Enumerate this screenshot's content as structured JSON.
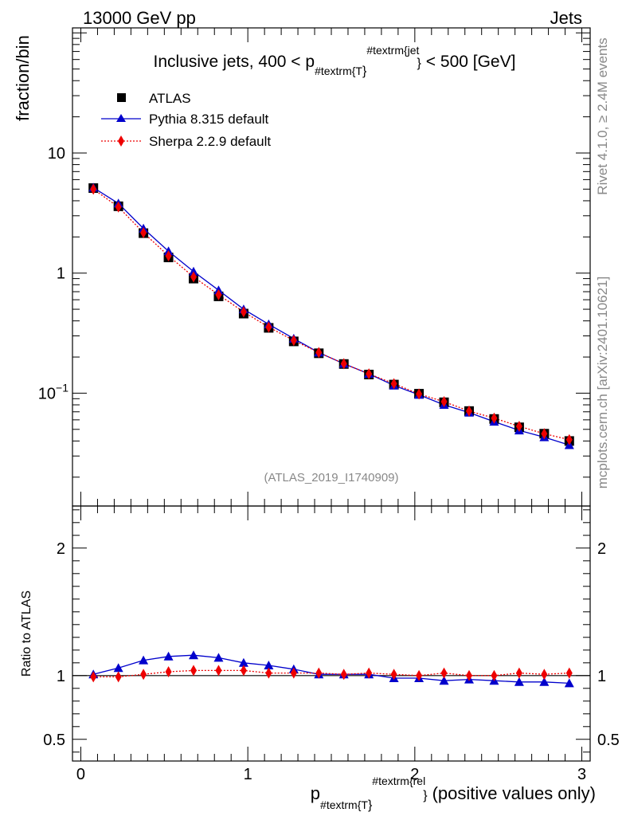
{
  "header": {
    "left": "13000 GeV pp",
    "right": "Jets",
    "side_events": "Rivet 4.1.0, ≥ 2.4M events",
    "side_ref": "mcplots.cern.ch [arXiv:2401.10621]",
    "analysis_tag": "(ATLAS_2019_I1740909)"
  },
  "colors": {
    "atlas": "#000000",
    "pythia": "#0000cc",
    "sherpa": "#ee0000"
  },
  "chart_data": [
    {
      "type": "line",
      "role": "main",
      "title_main": "Inclusive jets, 400 < p",
      "title_sub": "#textrm{T",
      "title_sup": "#textrm{jet",
      "title_tail": "< 500 [GeV]",
      "ylabel": "fraction/bin",
      "yscale": "log",
      "ylim": [
        0.0115,
        110
      ],
      "xlim": [
        -0.05,
        3.05
      ],
      "y_ticks": [
        {
          "value": 10,
          "label": "10"
        },
        {
          "value": 1,
          "label": "1"
        },
        {
          "value": 0.1,
          "label": "10",
          "sup": "−1"
        }
      ],
      "x": [
        0.075,
        0.225,
        0.375,
        0.525,
        0.675,
        0.825,
        0.975,
        1.125,
        1.275,
        1.425,
        1.575,
        1.725,
        1.875,
        2.025,
        2.175,
        2.325,
        2.475,
        2.625,
        2.775,
        2.925
      ],
      "legend": [
        "ATLAS",
        "Pythia 8.315 default",
        "Sherpa 2.2.9 default"
      ],
      "series": [
        {
          "name": "ATLAS",
          "values": [
            5.1,
            3.6,
            2.15,
            1.35,
            0.9,
            0.64,
            0.46,
            0.35,
            0.27,
            0.215,
            0.175,
            0.143,
            0.118,
            0.099,
            0.084,
            0.071,
            0.061,
            0.052,
            0.046,
            0.04
          ]
        },
        {
          "name": "Pythia 8.315 default",
          "values": [
            5.15,
            3.8,
            2.35,
            1.52,
            1.03,
            0.72,
            0.5,
            0.375,
            0.285,
            0.218,
            0.176,
            0.145,
            0.116,
            0.097,
            0.08,
            0.069,
            0.058,
            0.049,
            0.043,
            0.037
          ]
        },
        {
          "name": "Sherpa 2.2.9 default",
          "values": [
            5.0,
            3.55,
            2.17,
            1.39,
            0.93,
            0.66,
            0.475,
            0.355,
            0.275,
            0.218,
            0.176,
            0.145,
            0.12,
            0.0985,
            0.085,
            0.071,
            0.062,
            0.053,
            0.046,
            0.041
          ]
        }
      ]
    },
    {
      "type": "line",
      "role": "ratio",
      "ylabel": "Ratio to ATLAS",
      "ylim": [
        0.33,
        2.33
      ],
      "xlim": [
        -0.05,
        3.05
      ],
      "xlabel_main": "p",
      "xlabel_sub": "#textrm{T",
      "xlabel_sup": "#textrm{rel",
      "xlabel_tail": "(positive values only)",
      "y_ticks": [
        {
          "value": 2,
          "label": "2"
        },
        {
          "value": 1,
          "label": "1"
        },
        {
          "value": 0.5,
          "label": "0.5"
        }
      ],
      "x_ticks": [
        {
          "value": 0,
          "label": "0"
        },
        {
          "value": 1,
          "label": "1"
        },
        {
          "value": 2,
          "label": "2"
        },
        {
          "value": 3,
          "label": "3"
        }
      ],
      "x": [
        0.075,
        0.225,
        0.375,
        0.525,
        0.675,
        0.825,
        0.975,
        1.125,
        1.275,
        1.425,
        1.575,
        1.725,
        1.875,
        2.025,
        2.175,
        2.325,
        2.475,
        2.625,
        2.775,
        2.925
      ],
      "series": [
        {
          "name": "Pythia 8.315 default",
          "values": [
            1.01,
            1.06,
            1.12,
            1.15,
            1.16,
            1.14,
            1.1,
            1.08,
            1.05,
            1.01,
            1.01,
            1.01,
            0.98,
            0.98,
            0.96,
            0.97,
            0.96,
            0.95,
            0.95,
            0.94
          ]
        },
        {
          "name": "Sherpa 2.2.9 default",
          "values": [
            0.99,
            0.99,
            1.01,
            1.03,
            1.04,
            1.04,
            1.04,
            1.02,
            1.02,
            1.02,
            1.01,
            1.02,
            1.01,
            1.0,
            1.02,
            1.0,
            1.0,
            1.02,
            1.01,
            1.02
          ]
        }
      ]
    }
  ]
}
